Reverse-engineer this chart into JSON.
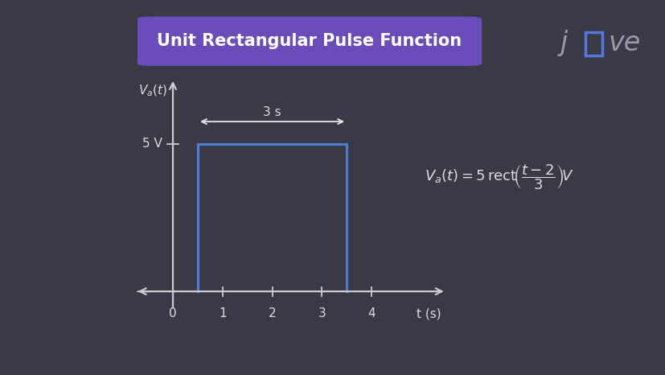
{
  "bg_color": "#3a3a47",
  "title": "Unit Rectangular Pulse Function",
  "title_bg": "#6a4db8",
  "title_color": "#ffffff",
  "axis_color": "#cccccc",
  "pulse_color": "#4a80d4",
  "pulse_x_start": 0.5,
  "pulse_x_end": 3.5,
  "pulse_y": 5,
  "xlim": [
    -0.8,
    5.5
  ],
  "ylim": [
    -0.8,
    7.2
  ],
  "xticks": [
    0,
    1,
    2,
    3,
    4
  ],
  "xlabel": "t (s)",
  "ylabel_5v": "5 V",
  "annotation_color": "#dddddd",
  "duration_label": "3 s",
  "tick_label_color": "#dddddd",
  "text_color": "#ffffff",
  "jove_text_color": "#9999aa"
}
